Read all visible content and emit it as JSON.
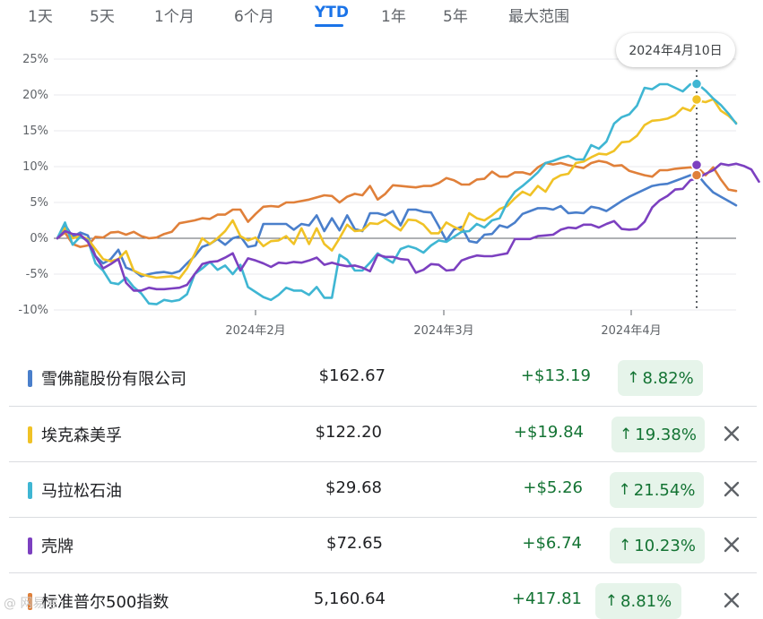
{
  "tabs": [
    {
      "label": "1天",
      "active": false
    },
    {
      "label": "5天",
      "active": false
    },
    {
      "label": "1个月",
      "active": false
    },
    {
      "label": "6个月",
      "active": false
    },
    {
      "label": "YTD",
      "active": true
    },
    {
      "label": "1年",
      "active": false
    },
    {
      "label": "5年",
      "active": false
    },
    {
      "label": "最大范围",
      "active": false
    }
  ],
  "tooltip": {
    "label": "2024年4月10日"
  },
  "chart_data": {
    "type": "line",
    "y_unit": "%",
    "ylim": [
      -10,
      25
    ],
    "yticks": [
      "25%",
      "20%",
      "15%",
      "10%",
      "5%",
      "0%",
      "-5%",
      "-10%"
    ],
    "xtick_labels": [
      "2024年2月",
      "2024年3月",
      "2024年4月"
    ],
    "grid": true,
    "highlight_date": "2024年4月10日",
    "series": [
      {
        "name": "雪佛龍股份有限公司",
        "color": "#4a7fcb",
        "values": [
          0,
          1.9,
          0.2,
          0.8,
          0.4,
          -2.5,
          -3.5,
          -2.9,
          -1.6,
          -4.1,
          -4.5,
          -5.3,
          -5.0,
          -4.8,
          -4.7,
          -4.9,
          -4.6,
          -3.5,
          -2.5,
          -1.2,
          -0.8,
          -0.1,
          -0.9,
          0,
          0.3,
          -1.2,
          -1.0,
          2.0,
          2.0,
          2.0,
          2.0,
          1.2,
          2.0,
          1.8,
          3.2,
          1.0,
          2.8,
          1.1,
          3.2,
          1.3,
          1.0,
          3.5,
          3.5,
          3.2,
          3.8,
          1.8,
          4.0,
          4.0,
          3.7,
          3.6,
          1.7,
          -0.3,
          1.2,
          1.6,
          -0.4,
          -0.6,
          0.5,
          0.6,
          1.8,
          1.5,
          2.2,
          3.4,
          3.8,
          4.2,
          4.2,
          4.0,
          4.5,
          3.5,
          3.6,
          3.5,
          4.4,
          4.2,
          3.8,
          4.5,
          5.2,
          5.8,
          6.3,
          6.8,
          7.3,
          7.5,
          7.6,
          8.0,
          8.4,
          8.8,
          8.8,
          7.5,
          6.4,
          5.8,
          5.2,
          4.6
        ]
      },
      {
        "name": "埃克森美孚",
        "color": "#f0c226",
        "values": [
          0,
          1.4,
          0.0,
          0.3,
          -0.1,
          -1.5,
          -2.9,
          -3.2,
          -2.9,
          -1.8,
          -4.5,
          -5.0,
          -5.3,
          -5.5,
          -5.4,
          -5.3,
          -5.6,
          -4.2,
          -2.2,
          0.0,
          -0.8,
          0.0,
          1.0,
          2.5,
          0.3,
          -0.3,
          0.1,
          -1.1,
          -0.4,
          -0.3,
          0.3,
          -0.8,
          1.4,
          -0.8,
          1.4,
          -0.8,
          -1.7,
          0.0,
          1.9,
          1.0,
          1.1,
          2.1,
          2.0,
          2.6,
          1.8,
          1.1,
          2.6,
          2.5,
          1.9,
          0.7,
          0.7,
          2.2,
          1.6,
          1.1,
          3.5,
          2.8,
          2.5,
          3.2,
          4.1,
          4.5,
          5.6,
          6.5,
          6.0,
          7.3,
          6.5,
          8.2,
          8.8,
          9.0,
          10.5,
          10.7,
          11.3,
          11.8,
          11.7,
          12.2,
          13.4,
          13.5,
          14.3,
          15.8,
          16.4,
          16.5,
          16.7,
          17.2,
          18.2,
          17.8,
          19.2,
          19.0,
          19.4,
          17.8,
          17.1,
          16.1
        ]
      },
      {
        "name": "马拉松石油",
        "color": "#3fb6d3",
        "values": [
          0,
          2.2,
          -0.9,
          0.2,
          -0.3,
          -3.5,
          -4.5,
          -6.2,
          -6.4,
          -5.5,
          -6.8,
          -7.7,
          -9.1,
          -9.2,
          -8.6,
          -8.8,
          -8.6,
          -7.8,
          -5.0,
          -4.2,
          -3.3,
          -4.4,
          -3.8,
          -5.0,
          -3.7,
          -6.8,
          -7.5,
          -8.2,
          -8.6,
          -7.9,
          -6.9,
          -7.3,
          -7.3,
          -7.9,
          -6.8,
          -8.3,
          -8.3,
          -2.3,
          -3.0,
          -4.5,
          -4.5,
          -3.4,
          -2.1,
          -2.8,
          -3.4,
          -1.5,
          -1.1,
          -1.4,
          -2.0,
          -1.0,
          -0.3,
          -0.5,
          0.2,
          0.9,
          1.0,
          2.0,
          1.5,
          2.5,
          2.8,
          5.0,
          6.5,
          7.3,
          8.2,
          9.2,
          10.5,
          10.8,
          11.2,
          11.5,
          11.0,
          11.0,
          13.0,
          12.5,
          13.5,
          16.0,
          16.9,
          17.3,
          18.5,
          21.0,
          20.8,
          21.5,
          21.5,
          21.0,
          20.5,
          21.5,
          21.5,
          20.6,
          19.5,
          18.6,
          17.4,
          16.0
        ]
      },
      {
        "name": "壳牌",
        "color": "#7c40c0",
        "values": [
          0,
          1.0,
          0.6,
          0.5,
          -0.5,
          -2.5,
          -4.2,
          -3.6,
          -2.9,
          -6.2,
          -7.3,
          -7.3,
          -6.9,
          -7.1,
          -7.1,
          -7.0,
          -6.9,
          -6.5,
          -5.0,
          -3.6,
          -3.3,
          -3.2,
          -2.7,
          -2.1,
          -4.5,
          -2.8,
          -3.1,
          -3.5,
          -4.0,
          -3.4,
          -3.5,
          -3.3,
          -3.4,
          -3.1,
          -2.7,
          -3.7,
          -3.4,
          -3.7,
          -3.9,
          -3.8,
          -4.1,
          -4.6,
          -2.3,
          -2.6,
          -2.6,
          -2.9,
          -3.0,
          -4.8,
          -4.4,
          -3.6,
          -3.7,
          -4.5,
          -4.4,
          -3.1,
          -2.7,
          -2.4,
          -2.5,
          -2.5,
          -2.3,
          -2.1,
          -0.1,
          -0.1,
          -0.1,
          0.3,
          0.4,
          0.5,
          1.2,
          1.5,
          1.4,
          1.9,
          1.9,
          1.5,
          2.0,
          2.4,
          1.3,
          1.2,
          1.3,
          2.3,
          4.3,
          5.3,
          5.9,
          6.8,
          6.9,
          8.1,
          8.4,
          9.0,
          9.5,
          10.4,
          10.2,
          10.4,
          10.1,
          9.6,
          7.9
        ]
      },
      {
        "name": "标准普尔500指数",
        "color": "#e0803a",
        "values": [
          0,
          0.8,
          -0.8,
          -1.2,
          -1.0,
          0.2,
          0.1,
          0.8,
          0.9,
          0.5,
          0.9,
          0.3,
          0.0,
          0.1,
          0.6,
          0.9,
          2.1,
          2.3,
          2.5,
          2.8,
          2.7,
          3.3,
          3.3,
          4.0,
          4.0,
          2.3,
          3.4,
          4.4,
          4.5,
          4.4,
          5.0,
          5.0,
          5.2,
          5.4,
          5.7,
          6.0,
          5.9,
          5.0,
          5.8,
          6.2,
          6.0,
          7.3,
          5.4,
          6.2,
          7.4,
          7.3,
          7.2,
          7.1,
          7.3,
          7.3,
          7.7,
          8.4,
          8.1,
          7.5,
          7.5,
          8.2,
          8.3,
          9.3,
          8.6,
          8.6,
          9.2,
          9.2,
          8.9,
          9.9,
          10.5,
          10.3,
          10.5,
          10.2,
          10.0,
          9.8,
          10.5,
          10.8,
          10.6,
          10.1,
          10.2,
          9.4,
          9.1,
          8.8,
          8.6,
          9.5,
          9.5,
          9.7,
          9.8,
          9.9,
          9.8,
          8.8,
          9.9,
          8.2,
          6.8,
          6.6
        ]
      }
    ]
  },
  "rows": [
    {
      "name": "雪佛龍股份有限公司",
      "color": "#4a7fcb",
      "price": "$162.67",
      "change": "+$13.19",
      "pct": "8.82%",
      "arrow": "↑",
      "removable": false
    },
    {
      "name": "埃克森美孚",
      "color": "#f0c226",
      "price": "$122.20",
      "change": "+$19.84",
      "pct": "19.38%",
      "arrow": "↑",
      "removable": true
    },
    {
      "name": "马拉松石油",
      "color": "#3fb6d3",
      "price": "$29.68",
      "change": "+$5.26",
      "pct": "21.54%",
      "arrow": "↑",
      "removable": true
    },
    {
      "name": "壳牌",
      "color": "#7c40c0",
      "price": "$72.65",
      "change": "+$6.74",
      "pct": "10.23%",
      "arrow": "↑",
      "removable": true
    },
    {
      "name": "标准普尔500指数",
      "color": "#e0803a",
      "price": "5,160.64",
      "change": "+417.81",
      "pct": "8.81%",
      "arrow": "↑",
      "removable": true
    }
  ],
  "watermark": "@ 网易号"
}
